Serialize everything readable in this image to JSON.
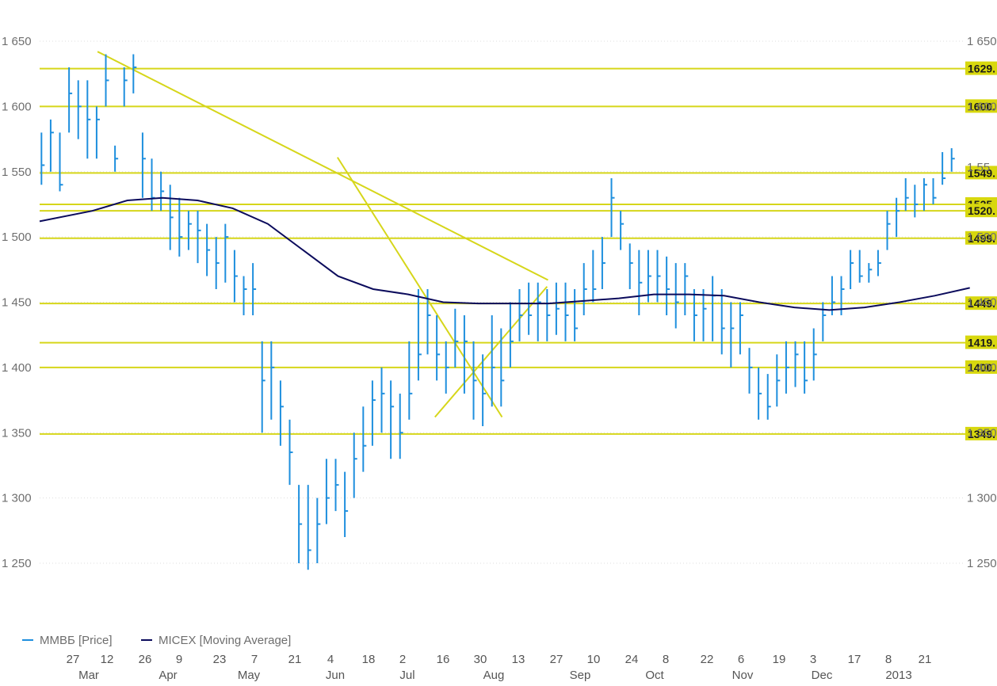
{
  "chart_data": {
    "type": "line",
    "title": "",
    "xlabel": "",
    "ylabel": "",
    "ylim": [
      1200,
      1670
    ],
    "y_ticks": [
      "1 250",
      "1 300",
      "1 350",
      "1 400",
      "1 450",
      "1 500",
      "1 550",
      "1 600",
      "1 650"
    ],
    "y_tick_values": [
      1250,
      1300,
      1350,
      1400,
      1450,
      1500,
      1550,
      1600,
      1650
    ],
    "right_partial_label": "1 55",
    "x_day_ticks": [
      "27",
      "12",
      "26",
      "9",
      "23",
      "7",
      "21",
      "4",
      "18",
      "2",
      "16",
      "30",
      "13",
      "27",
      "10",
      "24",
      "8",
      "22",
      "6",
      "19",
      "3",
      "17",
      "8",
      "21"
    ],
    "x_month_ticks": [
      "Mar",
      "Apr",
      "May",
      "Jun",
      "Jul",
      "Aug",
      "Sep",
      "Oct",
      "Nov",
      "Dec",
      "2013"
    ],
    "grid": "dotted horizontal",
    "legend_position": "bottom-left",
    "legend": [
      {
        "name": "ММВБ [Price]",
        "color": "#1e8fde"
      },
      {
        "name": "MICEX [Moving Average]",
        "color": "#0b0b5c"
      }
    ],
    "horizontal_levels": [
      {
        "value": 1629,
        "label": "1629."
      },
      {
        "value": 1600,
        "label": "1600."
      },
      {
        "value": 1549,
        "label": "1549."
      },
      {
        "value": 1525,
        "label": "1525."
      },
      {
        "value": 1520,
        "label": "1520."
      },
      {
        "value": 1499,
        "label": "1499."
      },
      {
        "value": 1449,
        "label": "1449."
      },
      {
        "value": 1419,
        "label": "1419."
      },
      {
        "value": 1400,
        "label": "1400."
      },
      {
        "value": 1349,
        "label": "1349."
      }
    ],
    "trend_lines": [
      {
        "from": [
          6.3,
          1642
        ],
        "to": [
          55.3,
          1467
        ]
      },
      {
        "from": [
          32.4,
          1561
        ],
        "to": [
          50.3,
          1362
        ]
      },
      {
        "from": [
          43.0,
          1362
        ],
        "to": [
          55.2,
          1462
        ]
      }
    ],
    "price_series": {
      "name": "ММВБ [Price]",
      "color": "#1e8fde",
      "x_unit": "week index (0 = week of Mar 27 tick minus 2 weeks)",
      "close": [
        1555,
        1580,
        1540,
        1610,
        1600,
        1590,
        1590,
        1620,
        1560,
        1620,
        1630,
        1560,
        1530,
        1535,
        1515,
        1500,
        1510,
        1505,
        1490,
        1480,
        1500,
        1470,
        1460,
        1460,
        1390,
        1400,
        1370,
        1335,
        1280,
        1260,
        1280,
        1300,
        1310,
        1290,
        1330,
        1340,
        1375,
        1380,
        1370,
        1350,
        1380,
        1410,
        1440,
        1410,
        1400,
        1420,
        1420,
        1390,
        1380,
        1400,
        1390,
        1420,
        1440,
        1440,
        1450,
        1440,
        1445,
        1440,
        1430,
        1460,
        1460,
        1480,
        1530,
        1510,
        1480,
        1465,
        1470,
        1470,
        1460,
        1450,
        1470,
        1440,
        1445,
        1455,
        1430,
        1430,
        1440,
        1400,
        1380,
        1370,
        1390,
        1400,
        1410,
        1390,
        1410,
        1440,
        1450,
        1460,
        1480,
        1470,
        1475,
        1480,
        1510,
        1520,
        1530,
        1525,
        1540,
        1530,
        1545,
        1560
      ],
      "high": [
        1580,
        1590,
        1580,
        1630,
        1620,
        1620,
        1600,
        1640,
        1570,
        1630,
        1640,
        1580,
        1560,
        1550,
        1540,
        1530,
        1520,
        1520,
        1510,
        1500,
        1510,
        1490,
        1470,
        1480,
        1420,
        1420,
        1390,
        1360,
        1310,
        1310,
        1300,
        1330,
        1330,
        1320,
        1350,
        1370,
        1390,
        1400,
        1390,
        1380,
        1420,
        1460,
        1460,
        1440,
        1420,
        1445,
        1440,
        1420,
        1410,
        1440,
        1430,
        1450,
        1460,
        1465,
        1465,
        1460,
        1465,
        1465,
        1460,
        1480,
        1490,
        1500,
        1545,
        1520,
        1495,
        1490,
        1490,
        1490,
        1485,
        1480,
        1480,
        1460,
        1460,
        1470,
        1460,
        1450,
        1450,
        1415,
        1400,
        1395,
        1410,
        1420,
        1420,
        1420,
        1430,
        1450,
        1470,
        1470,
        1490,
        1490,
        1480,
        1490,
        1520,
        1530,
        1545,
        1540,
        1545,
        1545,
        1565,
        1568
      ],
      "low": [
        1540,
        1550,
        1535,
        1580,
        1575,
        1560,
        1560,
        1600,
        1550,
        1600,
        1610,
        1530,
        1520,
        1520,
        1490,
        1485,
        1490,
        1480,
        1470,
        1460,
        1465,
        1450,
        1440,
        1440,
        1350,
        1360,
        1340,
        1310,
        1250,
        1245,
        1250,
        1280,
        1290,
        1270,
        1300,
        1320,
        1340,
        1350,
        1330,
        1330,
        1360,
        1390,
        1410,
        1390,
        1380,
        1400,
        1380,
        1360,
        1355,
        1370,
        1370,
        1400,
        1420,
        1425,
        1420,
        1420,
        1425,
        1420,
        1420,
        1440,
        1450,
        1460,
        1500,
        1490,
        1460,
        1440,
        1450,
        1450,
        1440,
        1430,
        1440,
        1420,
        1420,
        1420,
        1410,
        1400,
        1410,
        1380,
        1360,
        1360,
        1370,
        1380,
        1385,
        1380,
        1390,
        1420,
        1440,
        1440,
        1460,
        1465,
        1465,
        1470,
        1490,
        1500,
        1520,
        1515,
        1520,
        1525,
        1540,
        1550
      ]
    },
    "moving_average": {
      "name": "MICEX [Moving Average]",
      "color": "#0b0b5c",
      "points": [
        [
          0,
          1512
        ],
        [
          3,
          1520
        ],
        [
          5,
          1528
        ],
        [
          7,
          1530
        ],
        [
          9,
          1528
        ],
        [
          11,
          1522
        ],
        [
          13,
          1510
        ],
        [
          15,
          1490
        ],
        [
          17,
          1470
        ],
        [
          19,
          1460
        ],
        [
          21,
          1456
        ],
        [
          23,
          1450
        ],
        [
          25,
          1449
        ],
        [
          27,
          1449
        ],
        [
          29,
          1449
        ],
        [
          31,
          1451
        ],
        [
          33,
          1453
        ],
        [
          35,
          1456
        ],
        [
          37,
          1456
        ],
        [
          39,
          1455
        ],
        [
          41,
          1450
        ],
        [
          43,
          1446
        ],
        [
          45,
          1444
        ],
        [
          47,
          1446
        ],
        [
          49,
          1450
        ],
        [
          51,
          1455
        ],
        [
          53,
          1461
        ]
      ]
    }
  }
}
